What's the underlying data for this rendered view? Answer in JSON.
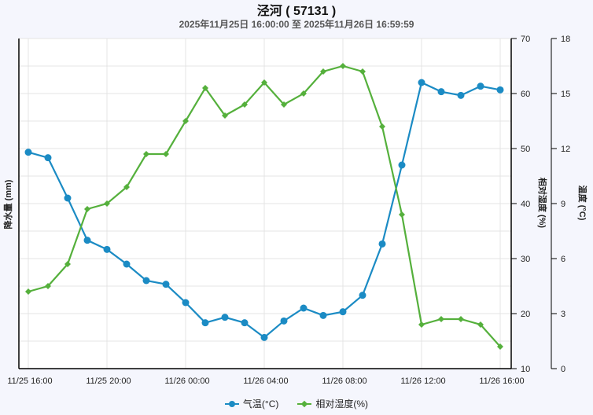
{
  "header": {
    "title": "泾河 ( 57131 )",
    "subtitle": "2025年11月25日 16:00:00 至 2025年11月26日 16:59:59"
  },
  "axes": {
    "left_title": "降水量 (mm)",
    "right1_title": "相对湿度 (%)",
    "right2_title": "温度 (°C)",
    "humidity_ticks": [
      "70",
      "60",
      "50",
      "40",
      "30",
      "20",
      "10"
    ],
    "temperature_ticks": [
      "18",
      "15",
      "12",
      "9",
      "6",
      "3",
      "0"
    ],
    "x_ticks": [
      "11/25 16:00",
      "11/25 20:00",
      "11/26 00:00",
      "11/26 04:00",
      "11/26 08:00",
      "11/26 12:00",
      "11/26 16:00"
    ]
  },
  "legend": {
    "temp_label": "气温(°C)",
    "humidity_label": "相对湿度(%)"
  },
  "colors": {
    "temperature": "#1b8bc4",
    "humidity": "#55b03c",
    "grid": "#e4e4e4",
    "background": "#f5f6fd",
    "plot_bg": "#ffffff"
  },
  "chart_data": {
    "type": "line",
    "title": "泾河 ( 57131 )",
    "subtitle": "2025年11月25日 16:00:00 至 2025年11月26日 16:59:59",
    "xlabel": "",
    "x": [
      "11/25 16:00",
      "11/25 17:00",
      "11/25 18:00",
      "11/25 19:00",
      "11/25 20:00",
      "11/25 21:00",
      "11/25 22:00",
      "11/25 23:00",
      "11/26 00:00",
      "11/26 01:00",
      "11/26 02:00",
      "11/26 03:00",
      "11/26 04:00",
      "11/26 05:00",
      "11/26 06:00",
      "11/26 07:00",
      "11/26 08:00",
      "11/26 09:00",
      "11/26 10:00",
      "11/26 11:00",
      "11/26 12:00",
      "11/26 13:00",
      "11/26 14:00",
      "11/26 15:00",
      "11/26 16:00"
    ],
    "series": [
      {
        "name": "气温(°C)",
        "axis": "温度 (°C)",
        "marker": "circle",
        "values": [
          11.8,
          11.5,
          9.3,
          7.0,
          6.5,
          5.7,
          4.8,
          4.6,
          3.6,
          2.5,
          2.8,
          2.5,
          1.7,
          2.6,
          3.3,
          2.9,
          3.1,
          4.0,
          6.8,
          11.1,
          15.6,
          15.1,
          14.9,
          15.4,
          15.2
        ]
      },
      {
        "name": "相对湿度(%)",
        "axis": "相对湿度 (%)",
        "marker": "diamond",
        "values": [
          24,
          25,
          29,
          39,
          40,
          43,
          49,
          49,
          55,
          61,
          56,
          58,
          62,
          58,
          60,
          64,
          65,
          64,
          54,
          38,
          18,
          19,
          19,
          18,
          14
        ]
      }
    ],
    "y_axes": [
      {
        "label": "降水量 (mm)",
        "position": "left",
        "ticks": []
      },
      {
        "label": "相对湿度 (%)",
        "position": "right",
        "ylim": [
          10,
          70
        ],
        "ticks": [
          10,
          20,
          30,
          40,
          50,
          60,
          70
        ]
      },
      {
        "label": "温度 (°C)",
        "position": "right",
        "ylim": [
          0,
          18
        ],
        "ticks": [
          0,
          3,
          6,
          9,
          12,
          15,
          18
        ]
      }
    ],
    "grid": true,
    "legend_position": "bottom"
  }
}
